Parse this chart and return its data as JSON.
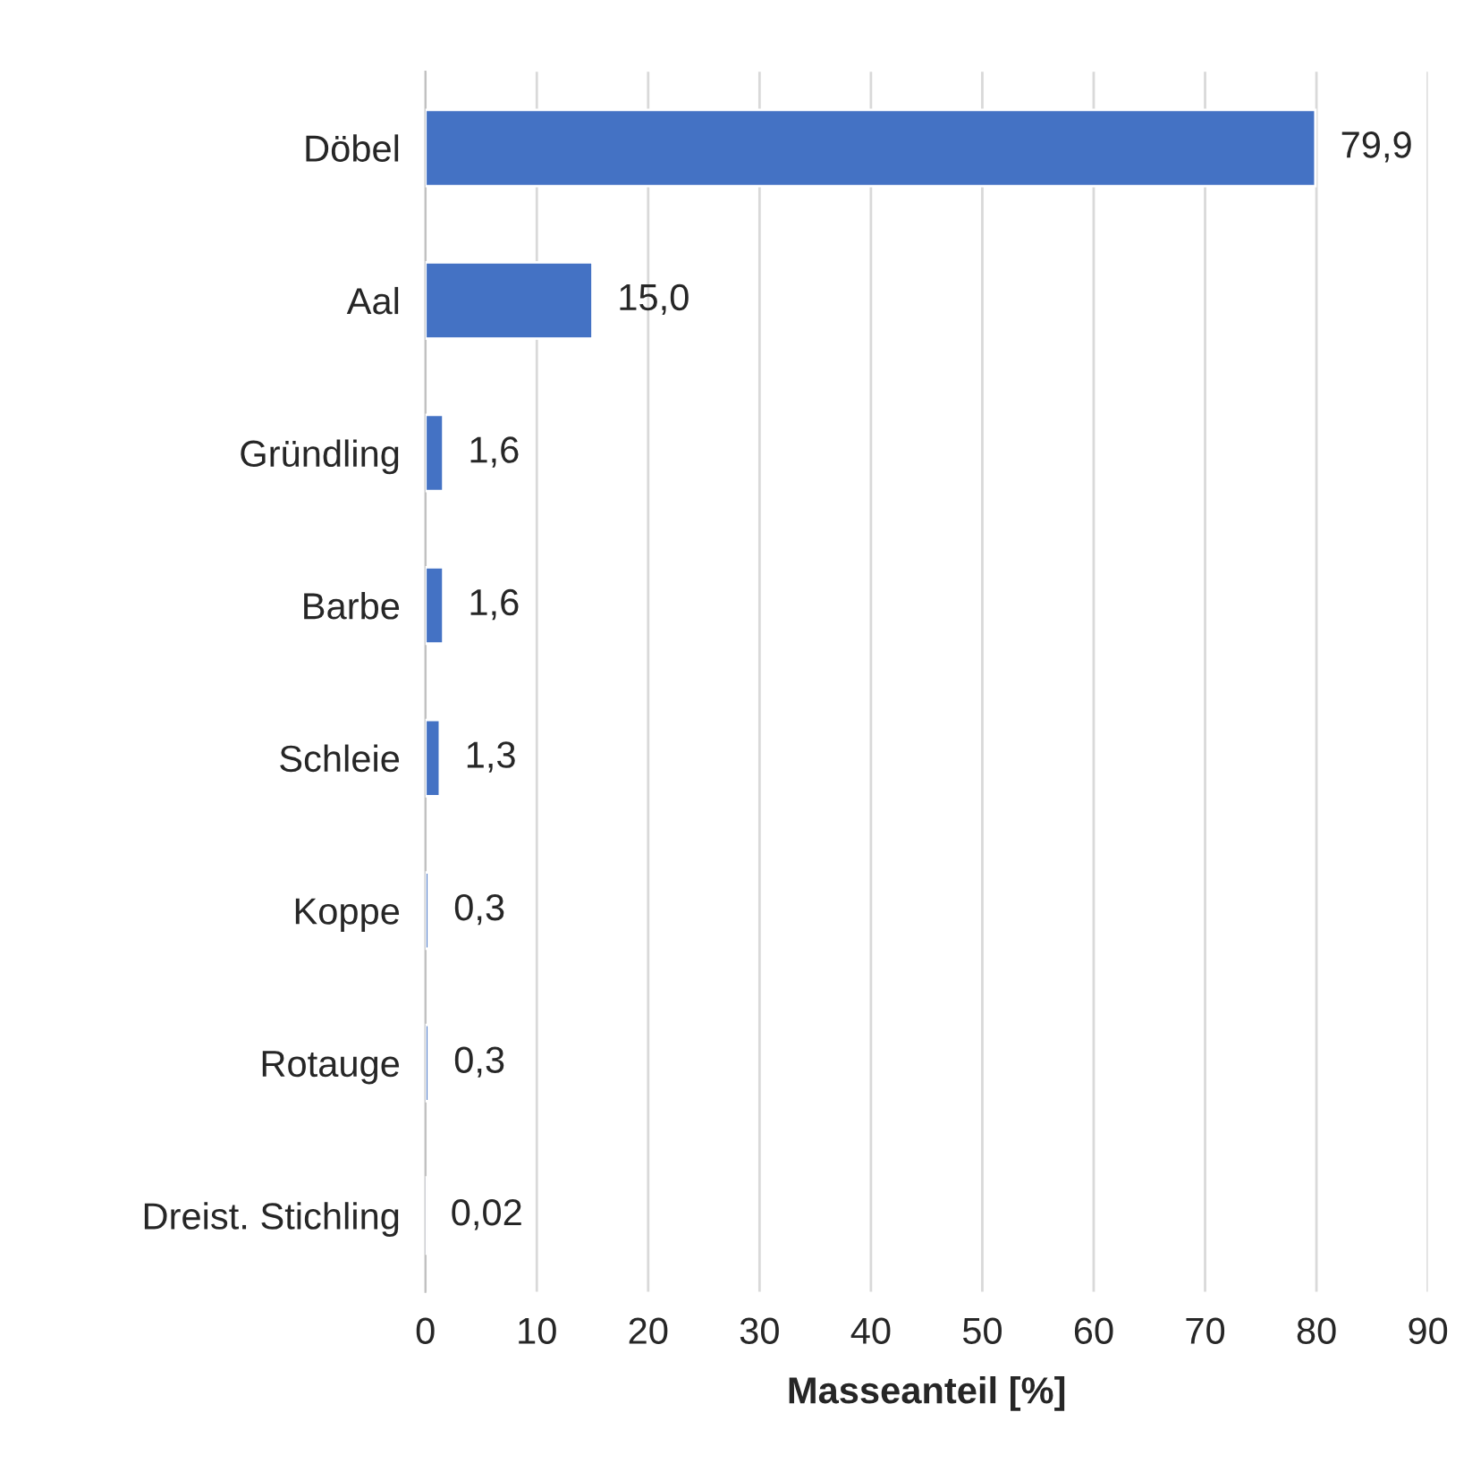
{
  "chart_data": {
    "type": "bar",
    "orientation": "horizontal",
    "xlabel": "Masseanteil [%]",
    "categories": [
      "Döbel",
      "Aal",
      "Gründling",
      "Barbe",
      "Schleie",
      "Koppe",
      "Rotauge",
      "Dreist. Stichling"
    ],
    "values": [
      79.9,
      15.0,
      1.6,
      1.6,
      1.3,
      0.3,
      0.3,
      0.02
    ],
    "value_labels": [
      "79,9",
      "15,0",
      "1,6",
      "1,6",
      "1,3",
      "0,3",
      "0,3",
      "0,02"
    ],
    "color": "#4472c4",
    "xlim": [
      0,
      90
    ],
    "xticks": [
      0,
      10,
      20,
      30,
      40,
      50,
      60,
      70,
      80,
      90
    ],
    "grid": "x"
  }
}
